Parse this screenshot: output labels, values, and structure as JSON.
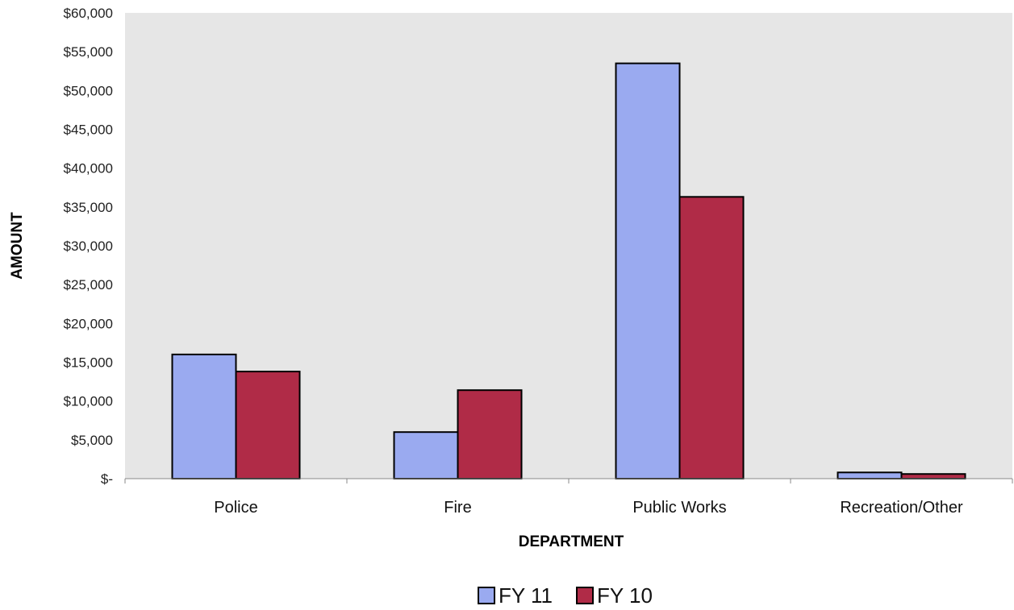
{
  "chart_data": {
    "type": "bar",
    "title": "",
    "xlabel": "DEPARTMENT",
    "ylabel": "AMOUNT",
    "categories": [
      "Police",
      "Fire",
      "Public Works",
      "Recreation/Other"
    ],
    "series": [
      {
        "name": "FY 11",
        "values": [
          16000,
          6000,
          53500,
          800
        ],
        "color": "#9aaaf0"
      },
      {
        "name": "FY 10",
        "values": [
          13800,
          11400,
          36300,
          600
        ],
        "color": "#b02b47"
      }
    ],
    "ylim": [
      0,
      60000
    ],
    "yticks": [
      0,
      5000,
      10000,
      15000,
      20000,
      25000,
      30000,
      35000,
      40000,
      45000,
      50000,
      55000,
      60000
    ],
    "ytick_labels": [
      "$-",
      "$5,000",
      "$10,000",
      "$15,000",
      "$20,000",
      "$25,000",
      "$30,000",
      "$35,000",
      "$40,000",
      "$45,000",
      "$50,000",
      "$55,000",
      "$60,000"
    ],
    "grid": false,
    "legend_position": "bottom-center",
    "plot_background": "#e6e6e6"
  }
}
